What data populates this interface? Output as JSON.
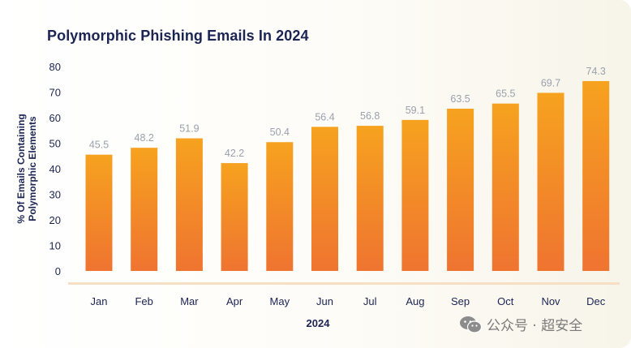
{
  "chart_data": {
    "type": "bar",
    "title": "Polymorphic Phishing Emails In 2024",
    "xlabel": "2024",
    "ylabel_lines": [
      "% Of Emails Containing",
      "Polymorphic Elements"
    ],
    "categories": [
      "Jan",
      "Feb",
      "Mar",
      "Apr",
      "May",
      "Jun",
      "Jul",
      "Aug",
      "Sep",
      "Oct",
      "Nov",
      "Dec"
    ],
    "values": [
      45.5,
      48.2,
      51.9,
      42.2,
      50.4,
      56.4,
      56.8,
      59.1,
      63.5,
      65.5,
      69.7,
      74.3
    ],
    "yticks": [
      0,
      10,
      20,
      30,
      40,
      50,
      60,
      70,
      80
    ],
    "ylim": [
      0,
      80
    ],
    "grid": false,
    "legend": "none",
    "colors": {
      "bar_top": "#f6a21f",
      "bar_bottom": "#ef7430",
      "baseline": "#f6dfc2",
      "value_label": "#9aa0ad",
      "axis_text": "#1b2453"
    }
  },
  "watermark": {
    "text": "公众号 · 超安全",
    "icon": "wechat-icon"
  }
}
